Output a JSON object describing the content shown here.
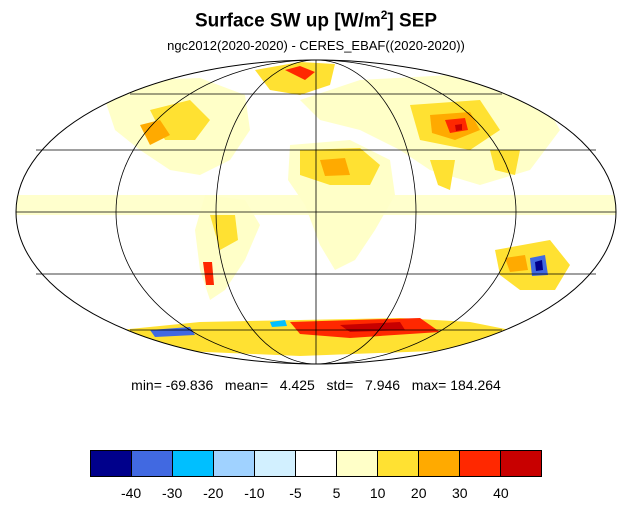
{
  "figure": {
    "title_main": "Surface SW up [W/m",
    "title_sup": "2",
    "title_tail": "]  SEP",
    "subtitle": "ngc2012(2020-2020) - CERES_EBAF((2020-2020))"
  },
  "stats": {
    "text": "min= -69.836   mean=   4.425   std=   7.946   max= 184.264"
  },
  "colorbar": {
    "colors": [
      "#00008b",
      "#4169e1",
      "#00bfff",
      "#a0d2ff",
      "#d2f0ff",
      "#ffffff",
      "#ffffc8",
      "#ffe132",
      "#ffaa00",
      "#ff2800",
      "#c80000"
    ],
    "labels": [
      "-40",
      "-30",
      "-20",
      "-10",
      "-5",
      "5",
      "10",
      "20",
      "30",
      "40"
    ]
  },
  "map": {
    "projection": "Mollweide",
    "land_color": "#ffffff",
    "ocean_color": "#ffffff"
  }
}
